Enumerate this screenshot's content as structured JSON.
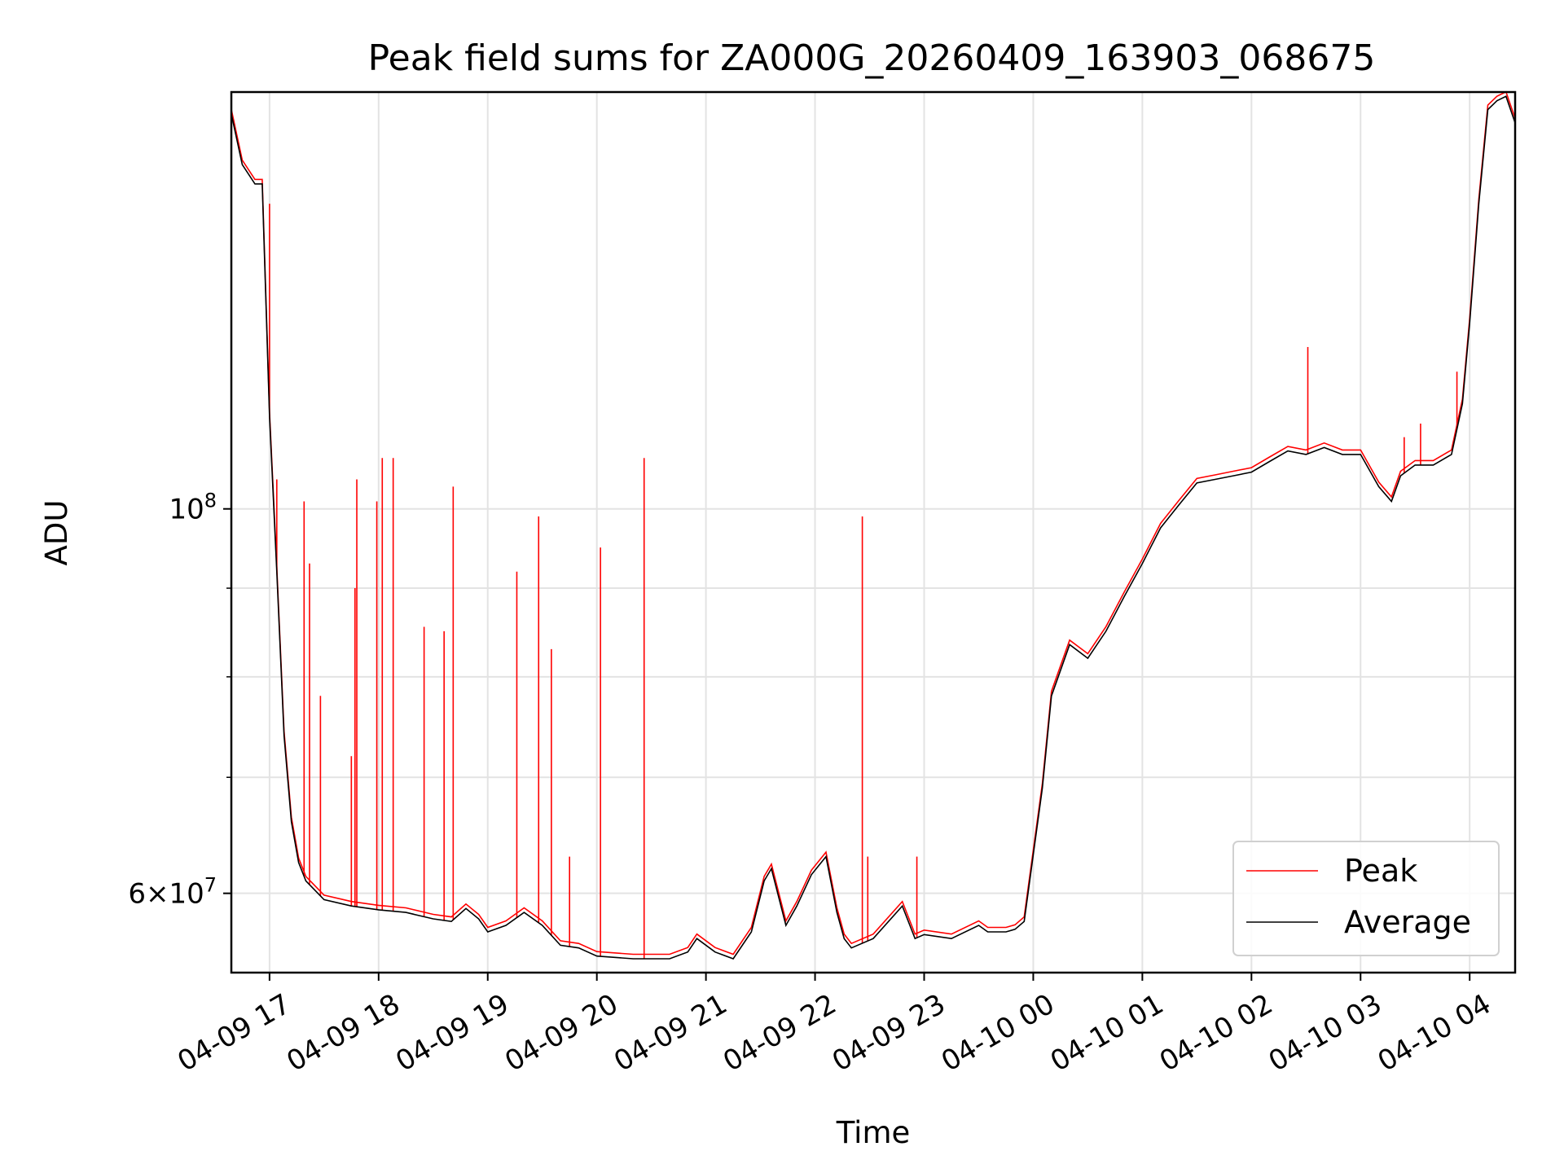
{
  "chart_data": {
    "type": "line",
    "title": "Peak field sums for ZA000G_20260409_163903_068675",
    "xlabel": "Time",
    "ylabel": "ADU",
    "y_scale": "log",
    "ylim": [
      54000000,
      174000000
    ],
    "xlim": [
      "2026-04-09 16:39",
      "2026-04-10 04:25"
    ],
    "grid": true,
    "legend_position": "lower right",
    "x_ticks": [
      "04-09 17",
      "04-09 18",
      "04-09 19",
      "04-09 20",
      "04-09 21",
      "04-09 22",
      "04-09 23",
      "04-10 00",
      "04-10 01",
      "04-10 02",
      "04-10 03",
      "04-10 04"
    ],
    "y_ticks": [
      {
        "value": 60000000,
        "base": "6",
        "exp": "7"
      },
      {
        "value": 100000000,
        "base": "",
        "exp": "8"
      }
    ],
    "series": [
      {
        "name": "Peak",
        "color": "#ff0000",
        "spikes": [
          {
            "x": "2026-04-09 17:00",
            "y": 150000000
          },
          {
            "x": "2026-04-09 17:04",
            "y": 104000000
          },
          {
            "x": "2026-04-09 17:19",
            "y": 101000000
          },
          {
            "x": "2026-04-09 17:22",
            "y": 93000000
          },
          {
            "x": "2026-04-09 17:28",
            "y": 78000000
          },
          {
            "x": "2026-04-09 17:45",
            "y": 72000000
          },
          {
            "x": "2026-04-09 17:47",
            "y": 90000000
          },
          {
            "x": "2026-04-09 17:48",
            "y": 104000000
          },
          {
            "x": "2026-04-09 17:59",
            "y": 101000000
          },
          {
            "x": "2026-04-09 18:02",
            "y": 107000000
          },
          {
            "x": "2026-04-09 18:08",
            "y": 107000000
          },
          {
            "x": "2026-04-09 18:25",
            "y": 85500000
          },
          {
            "x": "2026-04-09 18:36",
            "y": 85000000
          },
          {
            "x": "2026-04-09 18:41",
            "y": 103000000
          },
          {
            "x": "2026-04-09 19:16",
            "y": 92000000
          },
          {
            "x": "2026-04-09 19:28",
            "y": 99000000
          },
          {
            "x": "2026-04-09 19:35",
            "y": 83000000
          },
          {
            "x": "2026-04-09 19:45",
            "y": 63000000
          },
          {
            "x": "2026-04-09 20:02",
            "y": 95000000
          },
          {
            "x": "2026-04-09 20:26",
            "y": 107000000
          },
          {
            "x": "2026-04-09 22:26",
            "y": 99000000
          },
          {
            "x": "2026-04-09 22:29",
            "y": 63000000
          },
          {
            "x": "2026-04-09 22:56",
            "y": 63000000
          },
          {
            "x": "2026-04-10 02:31",
            "y": 124000000
          },
          {
            "x": "2026-04-10 03:24",
            "y": 110000000
          },
          {
            "x": "2026-04-10 03:33",
            "y": 112000000
          },
          {
            "x": "2026-04-10 03:53",
            "y": 120000000
          }
        ]
      },
      {
        "name": "Average",
        "color": "#000000",
        "x": [
          "2026-04-09 16:39",
          "2026-04-09 16:45",
          "2026-04-09 16:52",
          "2026-04-09 16:56",
          "2026-04-09 17:00",
          "2026-04-09 17:04",
          "2026-04-09 17:08",
          "2026-04-09 17:12",
          "2026-04-09 17:16",
          "2026-04-09 17:20",
          "2026-04-09 17:30",
          "2026-04-09 17:45",
          "2026-04-09 18:00",
          "2026-04-09 18:15",
          "2026-04-09 18:30",
          "2026-04-09 18:40",
          "2026-04-09 18:48",
          "2026-04-09 18:55",
          "2026-04-09 19:00",
          "2026-04-09 19:10",
          "2026-04-09 19:20",
          "2026-04-09 19:30",
          "2026-04-09 19:40",
          "2026-04-09 19:50",
          "2026-04-09 20:00",
          "2026-04-09 20:20",
          "2026-04-09 20:40",
          "2026-04-09 20:50",
          "2026-04-09 20:55",
          "2026-04-09 21:05",
          "2026-04-09 21:15",
          "2026-04-09 21:25",
          "2026-04-09 21:32",
          "2026-04-09 21:36",
          "2026-04-09 21:44",
          "2026-04-09 21:50",
          "2026-04-09 21:58",
          "2026-04-09 22:06",
          "2026-04-09 22:12",
          "2026-04-09 22:16",
          "2026-04-09 22:20",
          "2026-04-09 22:32",
          "2026-04-09 22:48",
          "2026-04-09 22:55",
          "2026-04-09 23:00",
          "2026-04-09 23:15",
          "2026-04-09 23:30",
          "2026-04-09 23:35",
          "2026-04-09 23:40",
          "2026-04-09 23:45",
          "2026-04-09 23:50",
          "2026-04-09 23:55",
          "2026-04-10 00:05",
          "2026-04-10 00:10",
          "2026-04-10 00:20",
          "2026-04-10 00:30",
          "2026-04-10 00:40",
          "2026-04-10 00:50",
          "2026-04-10 01:00",
          "2026-04-10 01:10",
          "2026-04-10 01:20",
          "2026-04-10 01:30",
          "2026-04-10 01:40",
          "2026-04-10 01:50",
          "2026-04-10 02:00",
          "2026-04-10 02:10",
          "2026-04-10 02:20",
          "2026-04-10 02:30",
          "2026-04-10 02:40",
          "2026-04-10 02:50",
          "2026-04-10 03:00",
          "2026-04-10 03:10",
          "2026-04-10 03:17",
          "2026-04-10 03:22",
          "2026-04-10 03:30",
          "2026-04-10 03:40",
          "2026-04-10 03:50",
          "2026-04-10 03:56",
          "2026-04-10 04:00",
          "2026-04-10 04:05",
          "2026-04-10 04:10",
          "2026-04-10 04:15",
          "2026-04-10 04:20",
          "2026-04-10 04:25"
        ],
        "y": [
          169000000,
          158000000,
          154000000,
          154000000,
          113000000,
          92000000,
          74000000,
          66000000,
          62500000,
          61000000,
          59500000,
          59000000,
          58700000,
          58500000,
          58000000,
          57800000,
          58800000,
          58000000,
          57000000,
          57500000,
          58500000,
          57500000,
          56000000,
          55800000,
          55200000,
          55000000,
          55000000,
          55500000,
          56500000,
          55500000,
          55000000,
          57000000,
          61000000,
          62000000,
          57500000,
          59000000,
          61500000,
          63000000,
          58500000,
          56500000,
          55800000,
          56500000,
          59000000,
          56500000,
          56800000,
          56500000,
          57500000,
          57000000,
          57000000,
          57000000,
          57200000,
          57800000,
          69000000,
          78000000,
          83500000,
          82000000,
          85000000,
          89000000,
          93000000,
          97500000,
          100500000,
          103500000,
          104000000,
          104500000,
          105000000,
          106500000,
          108000000,
          107500000,
          108500000,
          107500000,
          107500000,
          103000000,
          101000000,
          104500000,
          106000000,
          106000000,
          107500000,
          115000000,
          128000000,
          150000000,
          170000000,
          172000000,
          173000000,
          167000000
        ]
      }
    ]
  }
}
